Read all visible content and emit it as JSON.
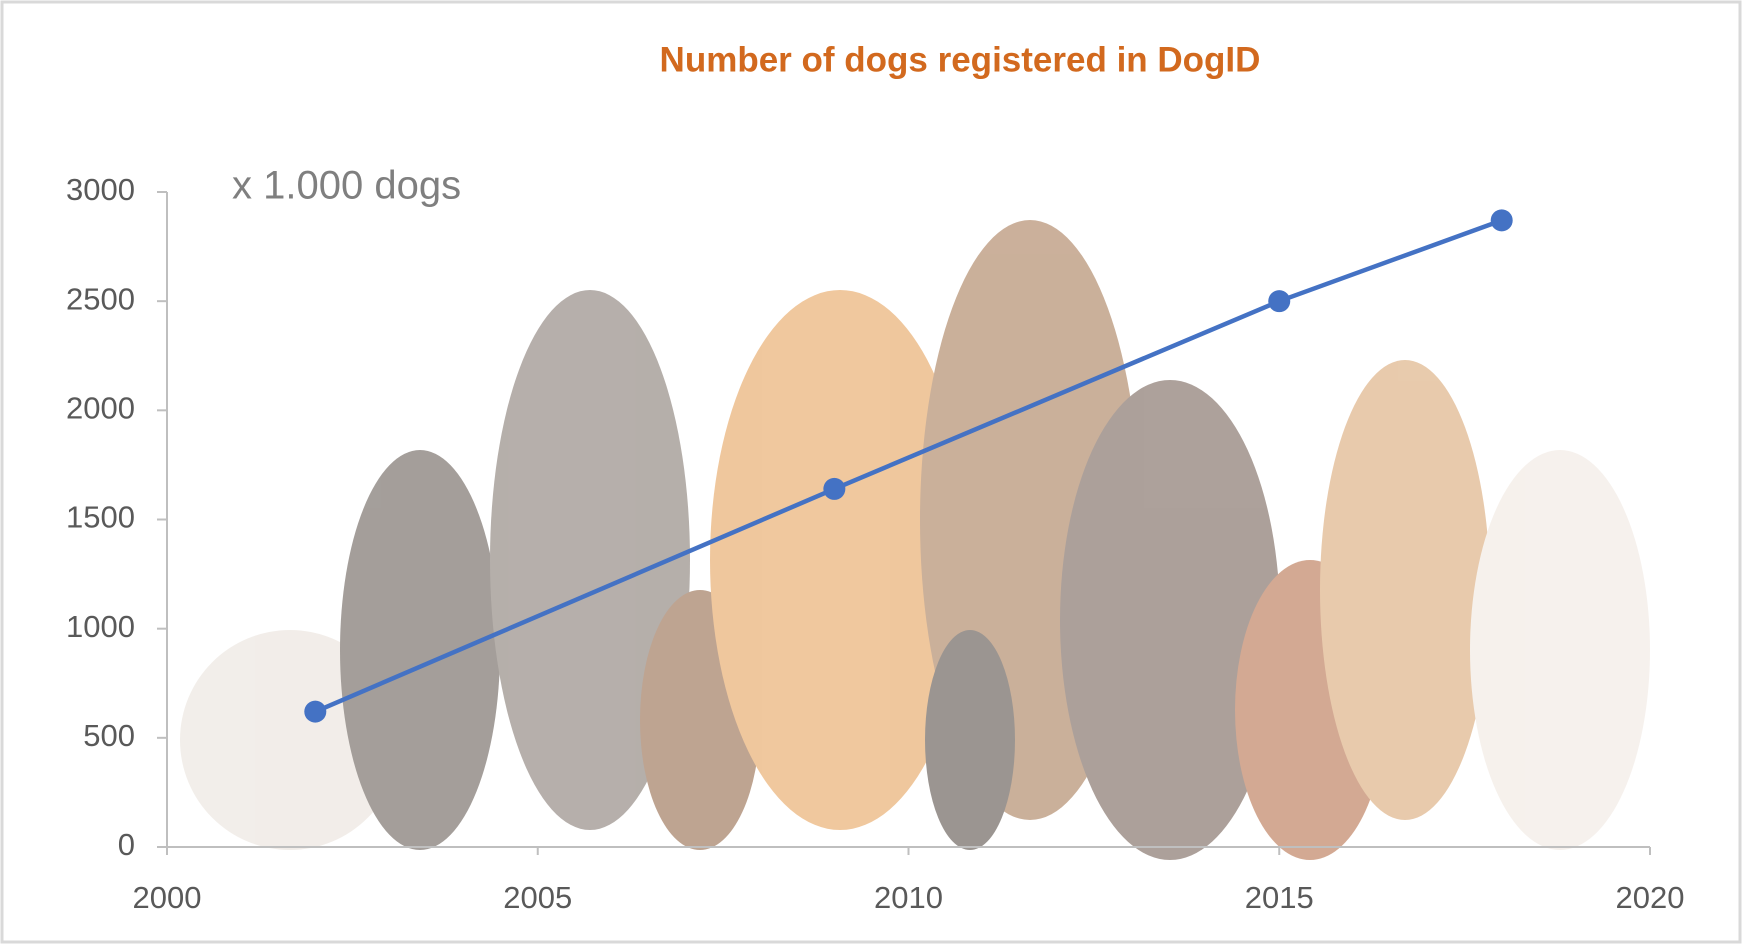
{
  "chart_data": {
    "type": "line",
    "title": "Number of dogs registered in DogID",
    "annotation": "x 1.000 dogs",
    "x": [
      2002,
      2009,
      2015,
      2018
    ],
    "values": [
      620,
      1640,
      2500,
      2870
    ],
    "color": "#4472c4",
    "xlim": [
      2000,
      2020
    ],
    "xticks": [
      2000,
      2005,
      2010,
      2015,
      2020
    ],
    "ylim": [
      0,
      3000
    ],
    "yticks": [
      0,
      500,
      1000,
      1500,
      2000,
      2500,
      3000
    ],
    "grid": false
  }
}
